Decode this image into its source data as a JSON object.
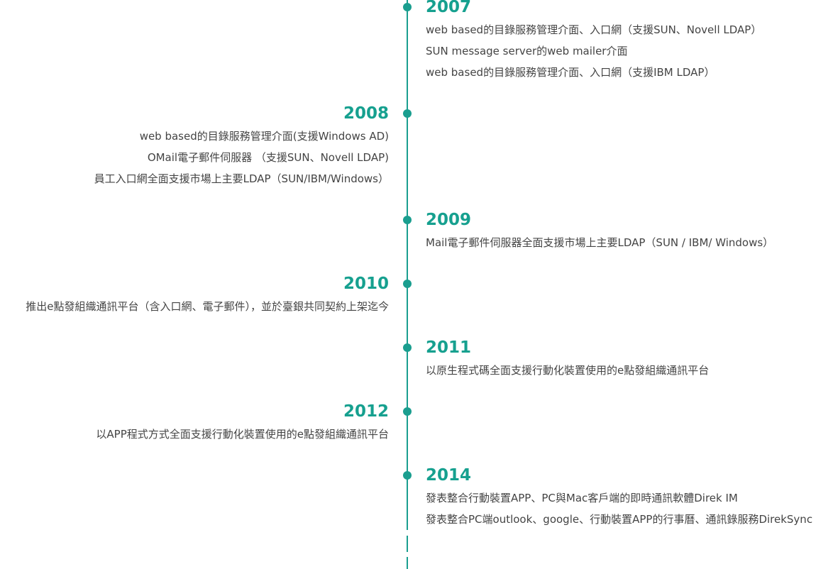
{
  "timeline": [
    {
      "year": "2007",
      "items": [
        "web based的目錄服務管理介面、入口網（支援SUN、Novell LDAP）",
        "SUN message server的web mailer介面",
        "web based的目錄服務管理介面、入口網（支援IBM LDAP）"
      ]
    },
    {
      "year": "2008",
      "items": [
        "web based的目錄服務管理介面(支援Windows AD)",
        "OMail電子郵件伺服器 （支援SUN、Novell LDAP)",
        "員工入口網全面支援市場上主要LDAP（SUN/IBM/Windows）"
      ]
    },
    {
      "year": "2009",
      "items": [
        "Mail電子郵件伺服器全面支援市場上主要LDAP（SUN / IBM/ Windows）"
      ]
    },
    {
      "year": "2010",
      "items": [
        "推出e點發組織通訊平台（含入口網、電子郵件），並於臺銀共同契約上架迄今"
      ]
    },
    {
      "year": "2011",
      "items": [
        "以原生程式碼全面支援行動化裝置使用的e點發組織通訊平台"
      ]
    },
    {
      "year": "2012",
      "items": [
        "以APP程式方式全面支援行動化裝置使用的e點發組織通訊平台"
      ]
    },
    {
      "year": "2014",
      "items": [
        "發表整合行動裝置APP、PC與Mac客戶端的即時通訊軟體Direk IM",
        "發表整合PC端outlook、google、行動裝置APP的行事曆、通訊錄服務DirekSync"
      ]
    }
  ]
}
